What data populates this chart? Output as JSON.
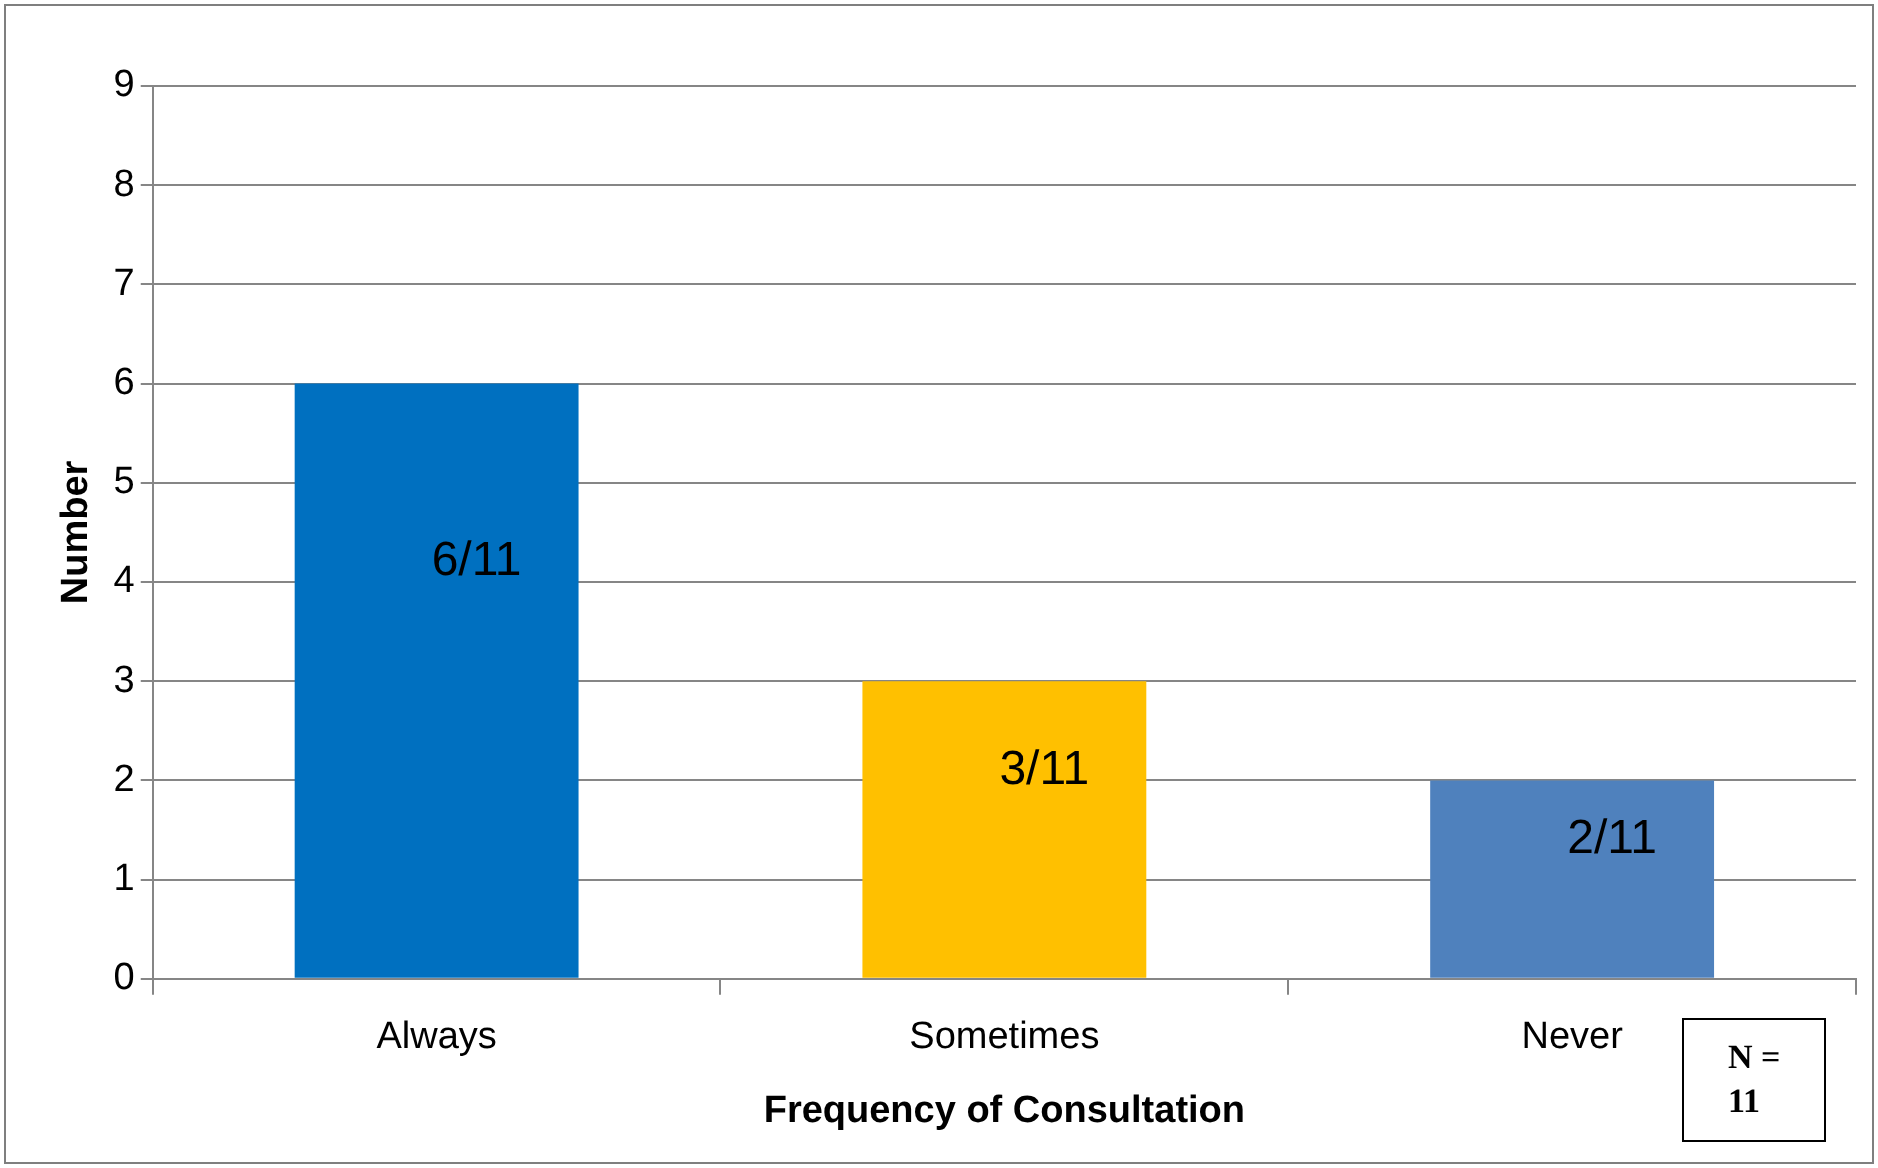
{
  "chart_data": {
    "type": "bar",
    "xlabel": "Frequency of Consultation",
    "ylabel": "Number",
    "categories": [
      "Always",
      "Sometimes",
      "Never"
    ],
    "values": [
      6,
      3,
      2
    ],
    "colors": [
      "#0070c0",
      "#ffc000",
      "#4f81bd"
    ],
    "value_labels": [
      "6/11",
      "3/11",
      "2/11"
    ],
    "ylim": [
      0,
      9
    ],
    "yticks": [
      0,
      1,
      2,
      3,
      4,
      5,
      6,
      7,
      8,
      9
    ],
    "grid": "y",
    "legend": false,
    "annotations": [
      "N = 11"
    ]
  }
}
